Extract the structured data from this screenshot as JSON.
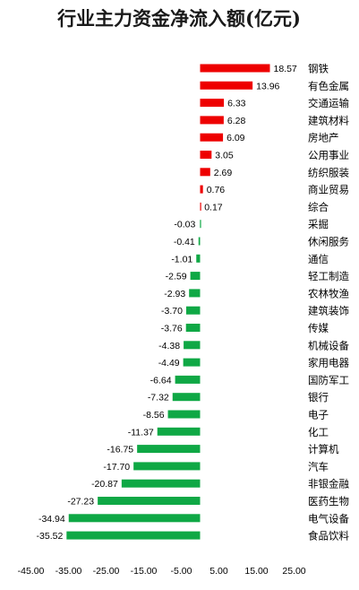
{
  "chart_data": {
    "type": "bar",
    "orientation": "horizontal",
    "title": "行业主力资金净流入额(亿元)",
    "categories": [
      "钢铁",
      "有色金属",
      "交通运输",
      "建筑材料",
      "房地产",
      "公用事业",
      "纺织服装",
      "商业贸易",
      "综合",
      "采掘",
      "休闲服务",
      "通信",
      "轻工制造",
      "农林牧渔",
      "建筑装饰",
      "传媒",
      "机械设备",
      "家用电器",
      "国防军工",
      "银行",
      "电子",
      "化工",
      "计算机",
      "汽车",
      "非银金融",
      "医药生物",
      "电气设备",
      "食品饮料"
    ],
    "values": [
      18.57,
      13.96,
      6.33,
      6.28,
      6.09,
      3.05,
      2.69,
      0.76,
      0.17,
      -0.03,
      -0.41,
      -1.01,
      -2.59,
      -2.93,
      -3.7,
      -3.76,
      -4.38,
      -4.49,
      -6.64,
      -7.32,
      -8.56,
      -11.37,
      -16.75,
      -17.7,
      -20.87,
      -27.23,
      -34.94,
      -35.52
    ],
    "value_labels": [
      "18.57",
      "13.96",
      "6.33",
      "6.28",
      "6.09",
      "3.05",
      "2.69",
      "0.76",
      "0.17",
      "-0.03",
      "-0.41",
      "-1.01",
      "-2.59",
      "-2.93",
      "-3.70",
      "-3.76",
      "-4.38",
      "-4.49",
      "-6.64",
      "-7.32",
      "-8.56",
      "-11.37",
      "-16.75",
      "-17.70",
      "-20.87",
      "-27.23",
      "-34.94",
      "-35.52"
    ],
    "xlim": [
      -45,
      25
    ],
    "xticks": [
      -45,
      -35,
      -25,
      -15,
      -5,
      5,
      15,
      25
    ],
    "xtick_labels": [
      "-45.00",
      "-35.00",
      "-25.00",
      "-15.00",
      "-5.00",
      "5.00",
      "15.00",
      "25.00"
    ],
    "grid": false,
    "colors": {
      "positive": "#ee0000",
      "negative": "#0fa845"
    }
  }
}
